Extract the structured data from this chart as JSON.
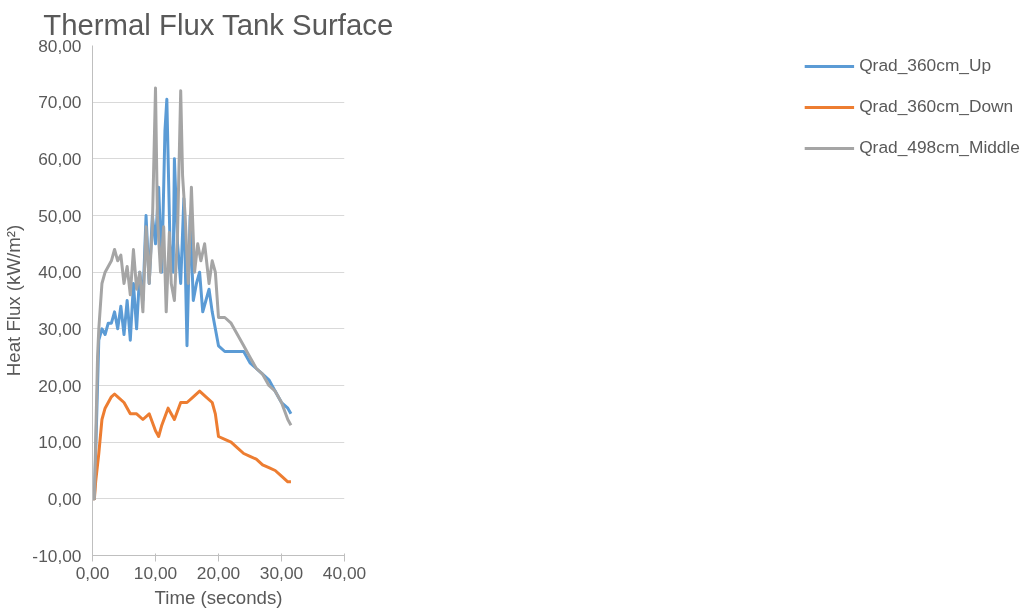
{
  "chart_data": {
    "type": "line",
    "title": "Thermal Flux Tank Surface",
    "xlabel": "Time (seconds)",
    "ylabel": "Heat Flux (kW/m²)",
    "xlim": [
      0,
      40
    ],
    "ylim": [
      -10,
      80
    ],
    "xticks": [
      {
        "value": 0,
        "label": "0,00"
      },
      {
        "value": 10,
        "label": "10,00"
      },
      {
        "value": 20,
        "label": "20,00"
      },
      {
        "value": 30,
        "label": "30,00"
      },
      {
        "value": 40,
        "label": "40,00"
      }
    ],
    "yticks": [
      {
        "value": -10,
        "label": "-10,00"
      },
      {
        "value": 0,
        "label": "0,00"
      },
      {
        "value": 10,
        "label": "10,00"
      },
      {
        "value": 20,
        "label": "20,00"
      },
      {
        "value": 30,
        "label": "30,00"
      },
      {
        "value": 40,
        "label": "40,00"
      },
      {
        "value": 50,
        "label": "50,00"
      },
      {
        "value": 60,
        "label": "60,00"
      },
      {
        "value": 70,
        "label": "70,00"
      },
      {
        "value": 80,
        "label": "80,00"
      }
    ],
    "grid": "y",
    "legend": "right",
    "marker": "none",
    "line_style": "solid",
    "series": [
      {
        "name": "Qrad_360cm_Up",
        "color": "#5b9bd5",
        "x": [
          0,
          0.3,
          0.5,
          0.8,
          1,
          1.5,
          2,
          2.5,
          3,
          3.5,
          4,
          4.5,
          5,
          5.5,
          6,
          6.5,
          7,
          7.5,
          8,
          8.5,
          9,
          9.5,
          10,
          10.5,
          11,
          11.5,
          11.8,
          12.3,
          12.8,
          13,
          13.5,
          14,
          14.5,
          15,
          15.5,
          16,
          16.5,
          17,
          17.5,
          18,
          18.5,
          19,
          19.5,
          20,
          21,
          22,
          23,
          24,
          25,
          26,
          27,
          28,
          29,
          30,
          31,
          31.5
        ],
        "values": [
          0,
          0,
          8,
          20,
          28,
          30,
          29,
          31,
          31,
          33,
          30,
          34,
          29,
          35,
          28,
          38,
          30,
          40,
          35,
          50,
          38,
          50,
          45,
          55,
          40,
          65,
          70.5,
          45,
          40,
          60,
          45,
          38,
          53,
          27,
          50,
          35,
          38,
          40,
          33,
          35,
          37,
          33,
          30,
          27,
          26,
          26,
          26,
          26,
          24,
          23,
          22,
          21,
          19,
          17,
          16,
          15
        ]
      },
      {
        "name": "Qrad_360cm_Down",
        "color": "#ed7d31",
        "x": [
          0,
          0.3,
          0.5,
          0.8,
          1,
          1.5,
          2,
          2.5,
          3,
          3.5,
          4,
          5,
          6,
          7,
          8,
          9,
          10,
          10.5,
          11,
          12,
          13,
          14,
          15,
          16,
          17,
          18,
          19,
          19.5,
          20,
          21,
          22,
          23,
          24,
          25,
          26,
          27,
          28,
          29,
          30,
          31,
          31.5
        ],
        "values": [
          0,
          0,
          3,
          6,
          8,
          14,
          16,
          17,
          18,
          18.5,
          18,
          17,
          15,
          15,
          14,
          15,
          12,
          11,
          13,
          16,
          14,
          17,
          17,
          18,
          19,
          18,
          17,
          15,
          11,
          10.5,
          10,
          9,
          8,
          7.5,
          7,
          6,
          5.5,
          5,
          4,
          3,
          3
        ]
      },
      {
        "name": "Qrad_498cm_Middle",
        "color": "#a5a5a5",
        "x": [
          0,
          0.3,
          0.5,
          0.8,
          1,
          1.5,
          2,
          3,
          3.5,
          4,
          4.5,
          5,
          5.5,
          6,
          6.5,
          7,
          7.5,
          8,
          8.5,
          9,
          9.5,
          10,
          10.3,
          10.8,
          11.3,
          11.7,
          12.2,
          12.5,
          13,
          13.5,
          14,
          14.3,
          14.7,
          15.2,
          15.7,
          16.2,
          16.7,
          17.2,
          17.8,
          18.5,
          19,
          19.5,
          20,
          21,
          22,
          23,
          24,
          25,
          26,
          27,
          28,
          29,
          30,
          31,
          31.5
        ],
        "values": [
          0,
          0,
          10,
          25,
          30,
          38,
          40,
          42,
          44,
          42,
          43,
          38,
          41,
          36,
          44,
          37,
          40,
          33,
          48,
          38,
          48,
          72.5,
          50,
          40,
          48,
          33,
          47,
          38,
          35,
          47,
          72,
          57,
          50,
          38,
          55,
          40,
          45,
          42,
          45,
          38,
          42,
          40,
          32,
          32,
          31,
          29,
          27,
          25,
          23,
          22,
          20,
          19,
          17,
          14,
          13
        ]
      }
    ]
  }
}
